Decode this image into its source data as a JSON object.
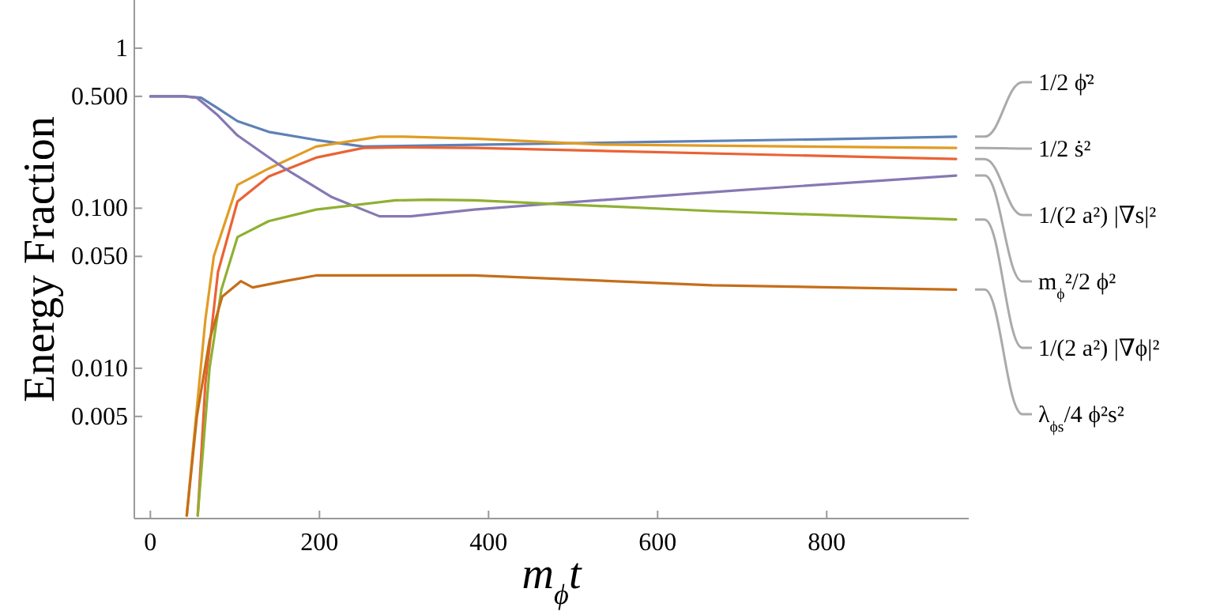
{
  "chart_data": {
    "type": "line",
    "xlabel": "m$_{ϕ}$t",
    "ylabel": "Energy Fraction",
    "log": "y",
    "grid": false,
    "marker": "none",
    "line_style": "solid",
    "xlim": [
      -19,
      968
    ],
    "ylim": [
      0.00115,
      2
    ],
    "xticks": [
      0,
      200,
      400,
      600,
      800
    ],
    "yticks": [
      {
        "value": 0.005,
        "label": "0.005"
      },
      {
        "value": 0.01,
        "label": "0.010"
      },
      {
        "value": 0.05,
        "label": "0.050"
      },
      {
        "value": 0.1,
        "label": "0.100"
      },
      {
        "value": 0.5,
        "label": "0.500"
      },
      1
    ],
    "series": [
      {
        "name": "1/2 ϕ̇²",
        "color": "#5e81b5",
        "x": [
          0,
          40,
          60,
          80,
          103,
          140,
          196,
          252,
          400,
          600,
          800,
          953
        ],
        "values": [
          0.5,
          0.5,
          0.49,
          0.42,
          0.35,
          0.3,
          0.267,
          0.243,
          0.25,
          0.26,
          0.27,
          0.28
        ]
      },
      {
        "name": "1/2 ṡ²",
        "color": "#e19c24",
        "x": [
          43,
          50,
          65,
          75,
          103,
          140,
          196,
          271,
          300,
          383,
          533,
          953
        ],
        "values": [
          0.0012,
          0.003,
          0.02,
          0.05,
          0.14,
          0.177,
          0.243,
          0.28,
          0.28,
          0.272,
          0.25,
          0.238
        ]
      },
      {
        "name": "1/(2 a²) |∇s|²",
        "color": "#eb6235",
        "x": [
          56,
          65,
          80,
          103,
          140,
          196,
          252,
          300,
          383,
          953
        ],
        "values": [
          0.0012,
          0.008,
          0.04,
          0.11,
          0.158,
          0.207,
          0.238,
          0.24,
          0.238,
          0.203
        ]
      },
      {
        "name": "m$_{ϕ}$²/2 ϕ²",
        "color": "#8778b3",
        "x": [
          0,
          40,
          55,
          80,
          103,
          159,
          215,
          271,
          308,
          383,
          477,
          700,
          953
        ],
        "values": [
          0.5,
          0.5,
          0.49,
          0.38,
          0.285,
          0.177,
          0.117,
          0.089,
          0.089,
          0.098,
          0.107,
          0.13,
          0.16
        ]
      },
      {
        "name": "1/(2 a²) |∇ϕ|²",
        "color": "#8fb032",
        "x": [
          56,
          70,
          84,
          103,
          140,
          196,
          290,
          330,
          383,
          664,
          953
        ],
        "values": [
          0.0012,
          0.01,
          0.031,
          0.066,
          0.083,
          0.098,
          0.112,
          0.113,
          0.112,
          0.096,
          0.085
        ]
      },
      {
        "name": "λ$_{ϕs}$/4 ϕ²s²",
        "color": "#c56e1a",
        "x": [
          43,
          55,
          70,
          85,
          107,
          121,
          159,
          196,
          300,
          383,
          664,
          953
        ],
        "values": [
          0.0012,
          0.005,
          0.015,
          0.028,
          0.035,
          0.032,
          0.035,
          0.038,
          0.038,
          0.038,
          0.033,
          0.031
        ]
      }
    ]
  }
}
